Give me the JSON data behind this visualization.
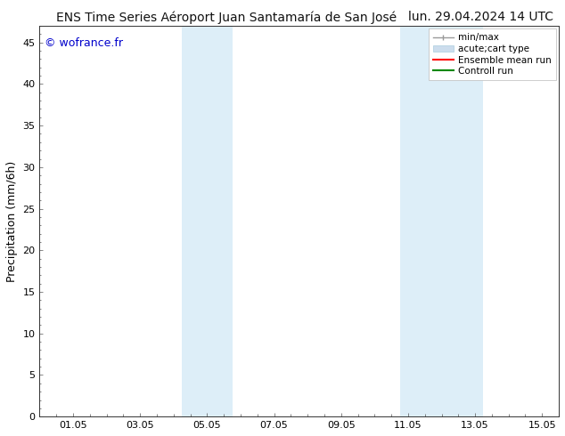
{
  "title_left": "ENS Time Series Aéroport Juan Santamaría de San José",
  "title_right": "lun. 29.04.2024 14 UTC",
  "ylabel": "Precipitation (mm/6h)",
  "watermark": "© wofrance.fr",
  "watermark_color": "#0000cc",
  "xlim_start": 0.0,
  "xlim_end": 15.5,
  "ylim": [
    0,
    47
  ],
  "yticks": [
    0,
    5,
    10,
    15,
    20,
    25,
    30,
    35,
    40,
    45
  ],
  "xtick_labels": [
    "01.05",
    "03.05",
    "05.05",
    "07.05",
    "09.05",
    "11.05",
    "13.05",
    "15.05"
  ],
  "xtick_positions": [
    1,
    3,
    5,
    7,
    9,
    11,
    13,
    15
  ],
  "shaded_bands": [
    {
      "x_start": 4.25,
      "x_end": 5.75
    },
    {
      "x_start": 10.75,
      "x_end": 13.25
    }
  ],
  "shaded_color": "#ddeef8",
  "background_color": "#ffffff",
  "title_fontsize": 10,
  "tick_fontsize": 8,
  "ylabel_fontsize": 9,
  "watermark_fontsize": 9,
  "legend_fontsize": 7.5
}
